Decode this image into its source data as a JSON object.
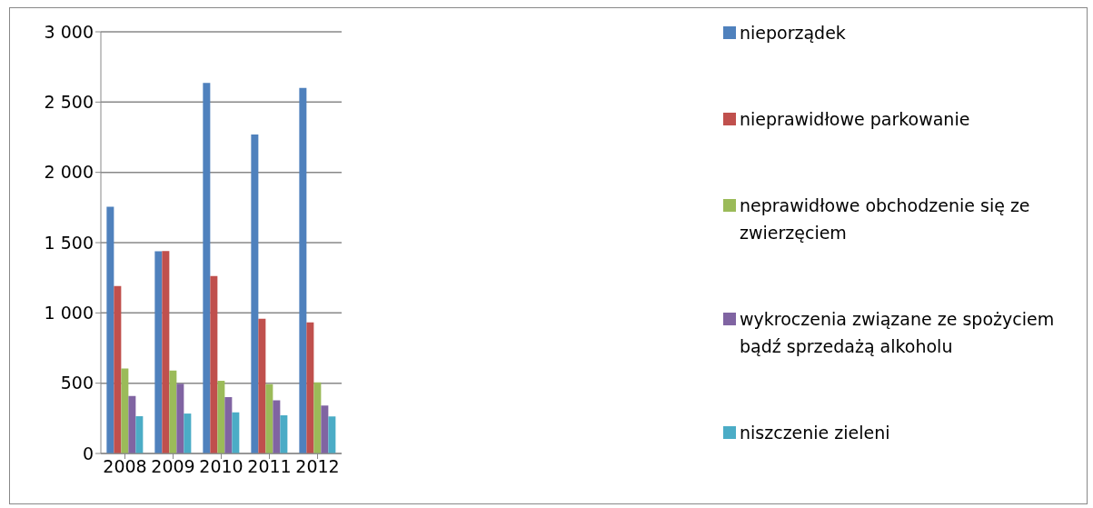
{
  "chart_data": {
    "type": "bar",
    "categories": [
      "2008",
      "2009",
      "2010",
      "2011",
      "2012"
    ],
    "series": [
      {
        "name": "nieporządek",
        "color": "#4f81bd",
        "values": [
          1755,
          1438,
          2637,
          2269,
          2600
        ]
      },
      {
        "name": "nieprawidłowe parkowanie",
        "color": "#c0504d",
        "values": [
          1191,
          1441,
          1262,
          959,
          932
        ]
      },
      {
        "name": "neprawidłowe obchodzenie się ze zwierzęciem",
        "color": "#9bbb59",
        "values": [
          604,
          590,
          517,
          493,
          506
        ]
      },
      {
        "name": "wykroczenia związane ze spożyciem bądź sprzedażą alkoholu",
        "color": "#8064a2",
        "values": [
          409,
          496,
          401,
          379,
          341
        ]
      },
      {
        "name": "niszczenie zieleni",
        "color": "#4bacc6",
        "values": [
          265,
          284,
          292,
          271,
          263
        ]
      }
    ],
    "ylim": [
      0,
      3000
    ],
    "yticks": [
      {
        "value": 0,
        "label": "0"
      },
      {
        "value": 500,
        "label": "500"
      },
      {
        "value": 1000,
        "label": "1 000"
      },
      {
        "value": 1500,
        "label": "1 500"
      },
      {
        "value": 2000,
        "label": "2 000"
      },
      {
        "value": 2500,
        "label": "2 500"
      },
      {
        "value": 3000,
        "label": "3 000"
      }
    ],
    "grid": "y",
    "legend": "right"
  }
}
